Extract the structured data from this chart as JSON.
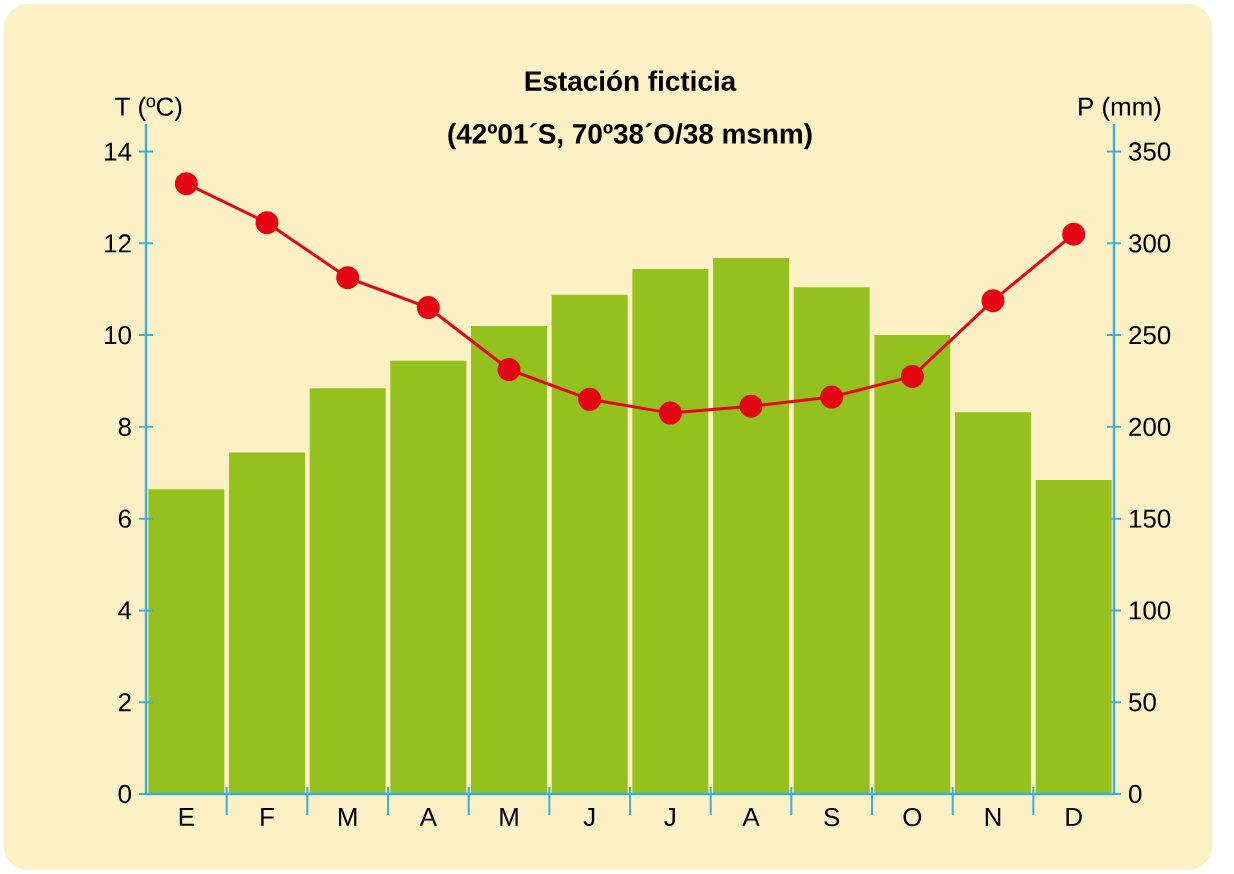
{
  "chart_data": {
    "type": "bar",
    "title": "Estación ficticia",
    "subtitle": "(42º01´S, 70º38´O/38 msnm)",
    "ylabel": "T (ºC)",
    "y2label": "P (mm)",
    "categories": [
      "E",
      "F",
      "M",
      "A",
      "M",
      "J",
      "J",
      "A",
      "S",
      "O",
      "N",
      "D"
    ],
    "series": [
      {
        "axis": "y2",
        "color": "#95c11f",
        "values": [
          166,
          186,
          221,
          236,
          255,
          272,
          286,
          292,
          276,
          250,
          208,
          171
        ]
      },
      {
        "type": "line",
        "color": "#e30613",
        "marker": "circle",
        "values": [
          13.3,
          12.45,
          11.25,
          10.6,
          9.25,
          8.6,
          8.3,
          8.45,
          8.65,
          9.1,
          10.75,
          12.2
        ]
      }
    ],
    "ylim": [
      0,
      14.6
    ],
    "yticks": [
      0,
      2,
      4,
      6,
      8,
      10,
      12,
      14
    ],
    "y2lim": [
      0,
      365
    ],
    "y2ticks": [
      0,
      50,
      100,
      150,
      200,
      250,
      300,
      350
    ]
  }
}
